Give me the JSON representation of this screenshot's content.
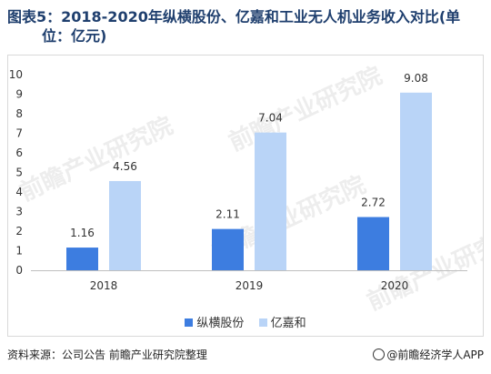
{
  "title": {
    "line1": "图表5：2018-2020年纵横股份、亿嘉和工业无人机业务收入对比(单",
    "line2": "位：亿元)"
  },
  "source": "资料来源：公司公告 前瞻产业研究院整理",
  "brand": "@前瞻经济学人APP",
  "watermark": "前瞻产业研究院",
  "colors": {
    "series1": "#3d7de0",
    "series2": "#b9d4f7"
  },
  "chart_data": {
    "type": "bar",
    "categories": [
      "2018",
      "2019",
      "2020"
    ],
    "series": [
      {
        "name": "纵横股份",
        "values": [
          1.16,
          2.11,
          2.72
        ]
      },
      {
        "name": "亿嘉和",
        "values": [
          4.56,
          7.04,
          9.08
        ]
      }
    ],
    "ylim": [
      0,
      10
    ],
    "yticks": [
      "0",
      "1",
      "2",
      "3",
      "4",
      "5",
      "6",
      "7",
      "8",
      "9",
      "10"
    ],
    "grid": false,
    "legend": "bottom"
  }
}
